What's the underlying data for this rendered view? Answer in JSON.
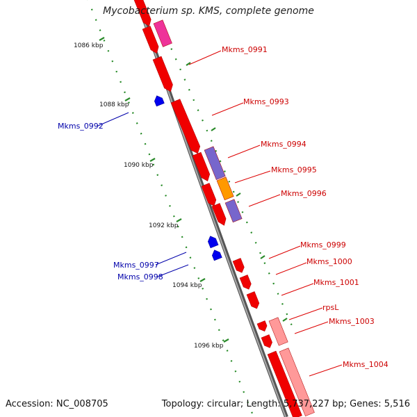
{
  "title": "Mycobacterium sp. KMS, complete genome",
  "footer": {
    "accession_label": "Accession:",
    "accession_value": "NC_008705",
    "topology_label": "Topology:",
    "topology_value": "circular",
    "length_label": "Length:",
    "length_value": "5,737,227 bp",
    "genes_label": "Genes:",
    "genes_value": "5,516"
  },
  "colors": {
    "forward_gene": "#f00000",
    "reverse_gene": "#0000ee",
    "forward_label": "#cc0000",
    "reverse_label": "#0000aa",
    "cog_pink": "#ee3399",
    "cog_purple": "#7766cc",
    "cog_orange": "#ff9900",
    "cog_light_red": "#ff9999",
    "backbone": "#888888",
    "tick_dots": "#228822"
  },
  "ticks": [
    {
      "label": "1086 kbp"
    },
    {
      "label": "1088 kbp"
    },
    {
      "label": "1090 kbp"
    },
    {
      "label": "1092 kbp"
    },
    {
      "label": "1094 kbp"
    },
    {
      "label": "1096 kbp"
    }
  ],
  "gene_labels": [
    {
      "name": "Mkms_0991",
      "strand": "forward"
    },
    {
      "name": "Mkms_0992",
      "strand": "reverse"
    },
    {
      "name": "Mkms_0993",
      "strand": "forward"
    },
    {
      "name": "Mkms_0994",
      "strand": "forward"
    },
    {
      "name": "Mkms_0995",
      "strand": "forward"
    },
    {
      "name": "Mkms_0996",
      "strand": "forward"
    },
    {
      "name": "Mkms_0997",
      "strand": "reverse"
    },
    {
      "name": "Mkms_0998",
      "strand": "reverse"
    },
    {
      "name": "Mkms_0999",
      "strand": "forward"
    },
    {
      "name": "Mkms_1000",
      "strand": "forward"
    },
    {
      "name": "Mkms_1001",
      "strand": "forward"
    },
    {
      "name": "rpsL",
      "strand": "forward"
    },
    {
      "name": "Mkms_1003",
      "strand": "forward"
    },
    {
      "name": "Mkms_1004",
      "strand": "forward"
    }
  ]
}
